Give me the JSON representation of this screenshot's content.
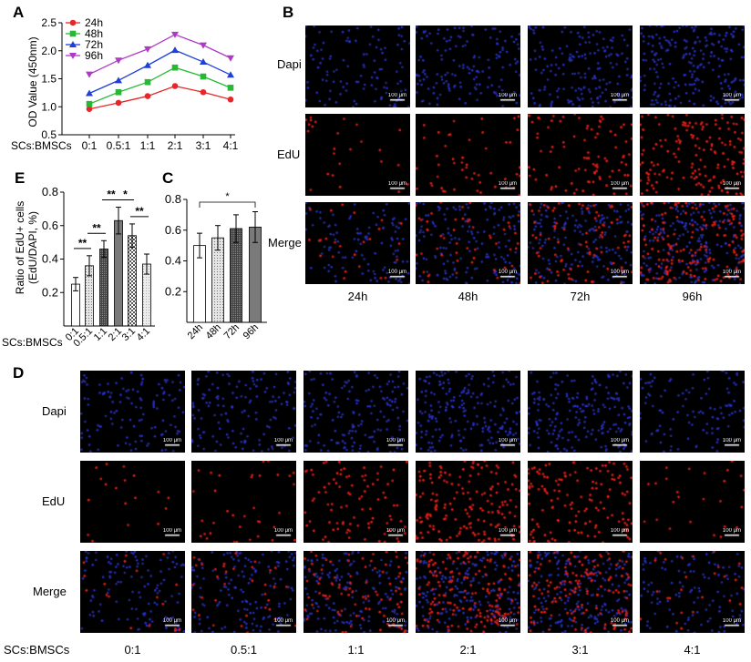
{
  "panels": {
    "A": "A",
    "B": "B",
    "C": "C",
    "D": "D",
    "E": "E"
  },
  "chart_data": [
    {
      "id": "A",
      "type": "line",
      "ylabel": "OD Value (450nm)",
      "xlabel": "SCs:BMSCs",
      "categories": [
        "0:1",
        "0.5:1",
        "1:1",
        "2:1",
        "3:1",
        "4:1"
      ],
      "ylim": [
        0.5,
        2.5
      ],
      "yticks": [
        "0.5",
        "1.0",
        "1.5",
        "2.0",
        "2.5"
      ],
      "legend": "top-left",
      "series": [
        {
          "name": "24h",
          "color": "#e8262a",
          "marker": "circle",
          "values": [
            0.96,
            1.07,
            1.19,
            1.37,
            1.26,
            1.13
          ]
        },
        {
          "name": "48h",
          "color": "#27b934",
          "marker": "square",
          "values": [
            1.05,
            1.26,
            1.44,
            1.7,
            1.54,
            1.34
          ]
        },
        {
          "name": "72h",
          "color": "#1f3fd6",
          "marker": "triangle-up",
          "values": [
            1.24,
            1.47,
            1.74,
            2.01,
            1.8,
            1.57
          ]
        },
        {
          "name": "96h",
          "color": "#b038c8",
          "marker": "triangle-down",
          "values": [
            1.58,
            1.83,
            2.03,
            2.29,
            2.1,
            1.87
          ]
        }
      ]
    },
    {
      "id": "E",
      "type": "bar",
      "ylabel": "Ratio of EdU+ cells\n(EdU/DAPI, %)",
      "ylabel_lines": [
        "Ratio of EdU+ cells",
        "(EdU/DAPI, %)"
      ],
      "xlabel": "SCs:BMSCs",
      "categories": [
        "0:1",
        "0.5:1",
        "1:1",
        "2:1",
        "3:1",
        "4:1"
      ],
      "ylim": [
        0,
        0.8
      ],
      "yticks": [
        "0.2",
        "0.4",
        "0.6",
        "0.8"
      ],
      "values": [
        0.25,
        0.36,
        0.46,
        0.63,
        0.54,
        0.37
      ],
      "errors": [
        0.04,
        0.06,
        0.05,
        0.08,
        0.07,
        0.06
      ],
      "fills": [
        "white",
        "dots",
        "dense",
        "gray",
        "checker",
        "lightdots"
      ],
      "significance": [
        {
          "from": 0,
          "to": 1,
          "label": "**"
        },
        {
          "from": 1,
          "to": 2,
          "label": "**"
        },
        {
          "from": 2,
          "to": 3,
          "label": "**"
        },
        {
          "from": 3,
          "to": 4,
          "label": "*"
        },
        {
          "from": 4,
          "to": 5,
          "label": "**"
        }
      ]
    },
    {
      "id": "C",
      "type": "bar",
      "categories": [
        "24h",
        "48h",
        "72h",
        "96h"
      ],
      "ylim": [
        0,
        0.8
      ],
      "yticks": [
        "0.2",
        "0.4",
        "0.6",
        "0.8"
      ],
      "values": [
        0.5,
        0.55,
        0.61,
        0.62
      ],
      "errors": [
        0.08,
        0.08,
        0.09,
        0.1
      ],
      "fills": [
        "white",
        "dots",
        "dense",
        "gray"
      ],
      "significance": [
        {
          "from": 0,
          "to": 3,
          "label": "*"
        }
      ]
    }
  ],
  "B": {
    "rows": [
      "Dapi",
      "EdU",
      "Merge"
    ],
    "columns": [
      "24h",
      "48h",
      "72h",
      "96h"
    ],
    "scale_bar": "100 μm"
  },
  "D": {
    "rows": [
      "Dapi",
      "EdU",
      "Merge"
    ],
    "row_axis_label": "SCs:BMSCs",
    "columns": [
      "0:1",
      "0.5:1",
      "1:1",
      "2:1",
      "3:1",
      "4:1"
    ],
    "scale_bar": "100 μm"
  }
}
